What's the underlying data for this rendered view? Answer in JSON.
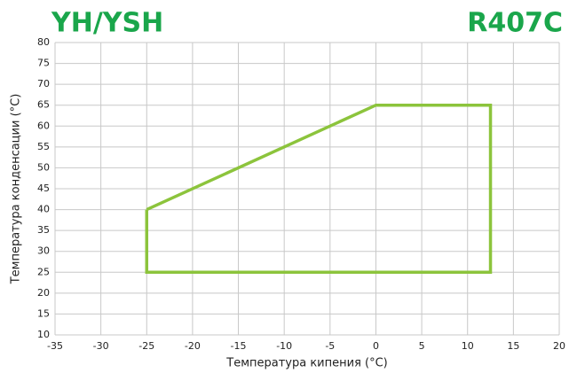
{
  "chart_data": {
    "type": "line",
    "title": "YH/YSH",
    "subtitle": "R407C",
    "title_color": "#1aa64b",
    "x_label": "Температура кипения (°C)",
    "y_label": "Температура конденсации (°C)",
    "x": [
      -25,
      0,
      12.5,
      12.5,
      -25,
      -25
    ],
    "series": [
      {
        "color": "#8cc43c",
        "values": [
          40,
          65,
          65,
          25,
          25,
          40
        ]
      }
    ],
    "xlim": [
      -35,
      20
    ],
    "xticks": [
      -35,
      -30,
      -25,
      -20,
      -15,
      -10,
      -5,
      0,
      5,
      10,
      15,
      20
    ],
    "ylim": [
      10,
      80
    ],
    "yticks": [
      10,
      15,
      20,
      25,
      30,
      35,
      40,
      45,
      50,
      55,
      60,
      65,
      70,
      75,
      80
    ],
    "grid": true
  }
}
